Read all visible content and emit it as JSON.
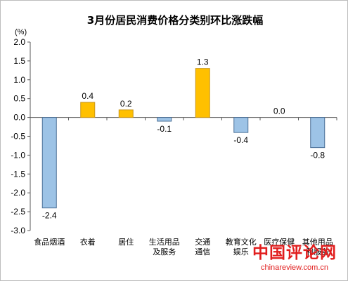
{
  "chart_data": {
    "type": "bar",
    "title": "3月份居民消费价格分类别环比涨跌幅",
    "unit_label": "(%)",
    "categories": [
      [
        "食品烟酒"
      ],
      [
        "衣着"
      ],
      [
        "居住"
      ],
      [
        "生活用品",
        "及服务"
      ],
      [
        "交通",
        "通信"
      ],
      [
        "教育文化",
        "娱乐"
      ],
      [
        "医疗保健"
      ],
      [
        "其他用品",
        "和服务"
      ]
    ],
    "values": [
      -2.4,
      0.4,
      0.2,
      -0.1,
      1.3,
      -0.4,
      0.0,
      -0.8
    ],
    "value_labels": [
      "-2.4",
      "0.4",
      "0.2",
      "-0.1",
      "1.3",
      "-0.4",
      "0.0",
      "-0.8"
    ],
    "yticks": [
      "2.0",
      "1.5",
      "1.0",
      "0.5",
      "0.0",
      "-0.5",
      "-1.0",
      "-1.5",
      "-2.0",
      "-2.5",
      "-3.0"
    ],
    "ylim": [
      -3.0,
      2.0
    ],
    "colors": {
      "positive": "#ffc000",
      "positive_border": "#c8961a",
      "negative": "#9dc3e6",
      "negative_border": "#4a6f96",
      "axis": "#595959",
      "text": "#000000"
    },
    "grid": false,
    "legend": "none"
  },
  "watermark": {
    "logo_text": "中国评论网",
    "url": "chinareview.com.cn"
  }
}
